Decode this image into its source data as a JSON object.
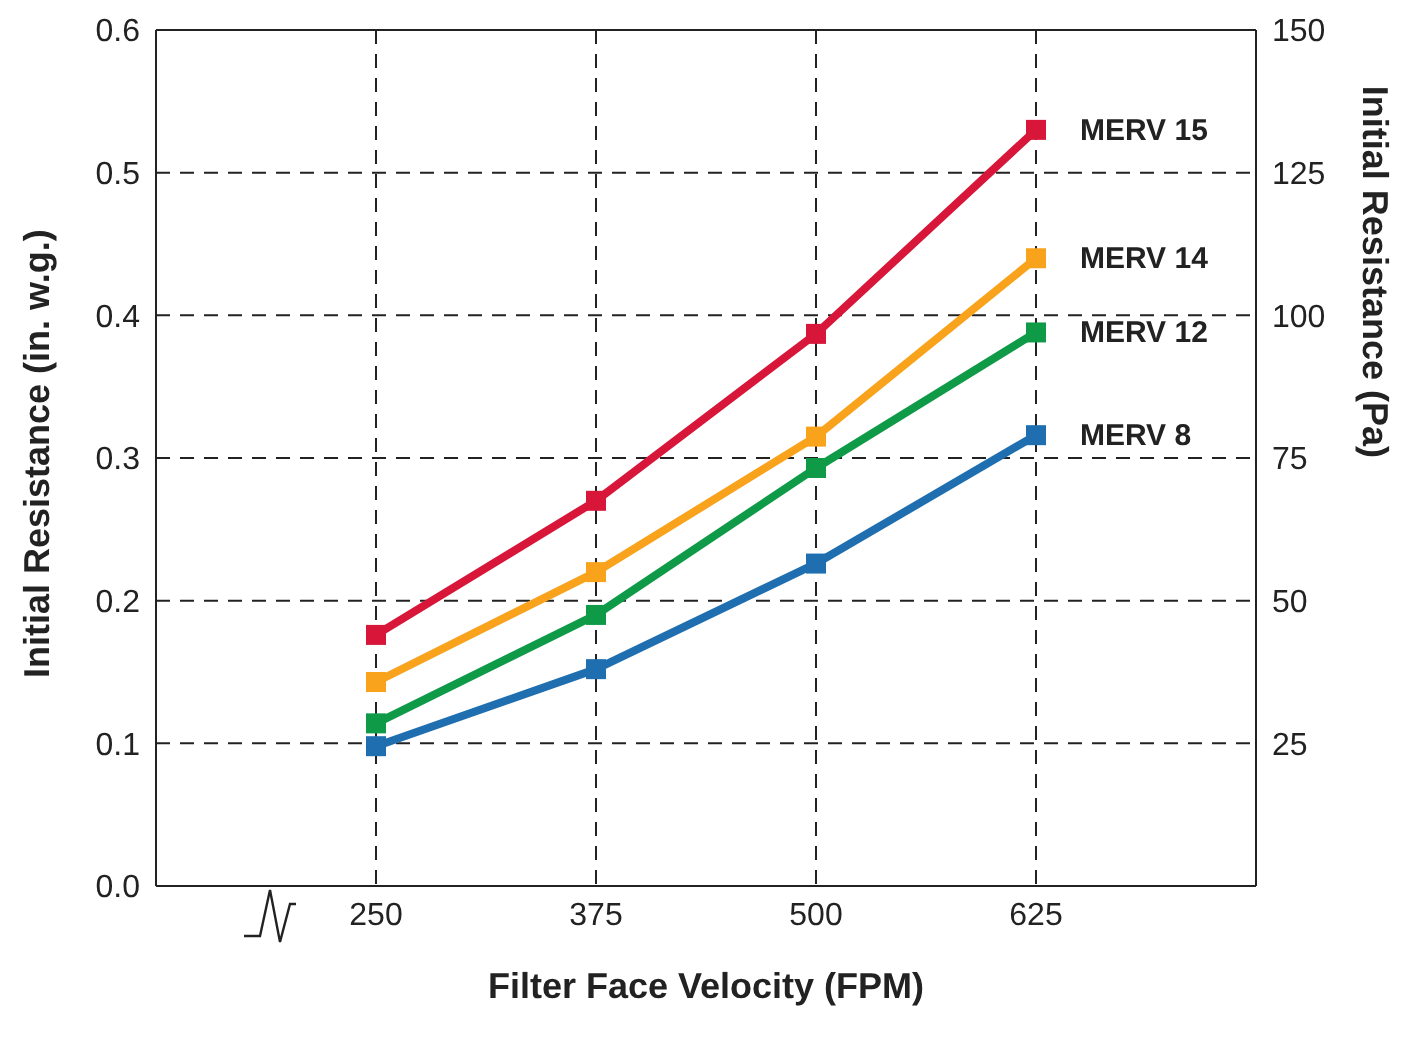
{
  "chart_data": {
    "type": "line",
    "xlabel": "Filter Face Velocity (FPM)",
    "ylabel": "Initial Resistance (in. w.g.)",
    "y2label": "Initial Resistance (Pa)",
    "x": [
      250,
      375,
      500,
      625
    ],
    "series": [
      {
        "name": "MERV 15",
        "color": "#d7163a",
        "values": [
          0.176,
          0.27,
          0.387,
          0.53
        ]
      },
      {
        "name": "MERV 14",
        "color": "#f9a21b",
        "values": [
          0.143,
          0.22,
          0.315,
          0.44
        ]
      },
      {
        "name": "MERV 12",
        "color": "#0f9a48",
        "values": [
          0.114,
          0.19,
          0.293,
          0.388
        ]
      },
      {
        "name": "MERV 8",
        "color": "#1f6fb0",
        "values": [
          0.098,
          0.152,
          0.226,
          0.316
        ]
      }
    ],
    "xlim": [
      125,
      750
    ],
    "xticks": [
      250,
      375,
      500,
      625
    ],
    "ylim": [
      0,
      0.6
    ],
    "yticks": [
      {
        "value": 0,
        "label": "0.0"
      },
      0.1,
      0.2,
      0.3,
      0.4,
      0.5,
      0.6
    ],
    "y2lim": [
      0,
      150
    ],
    "y2ticks": [
      25,
      50,
      75,
      100,
      125,
      150
    ],
    "grid": true,
    "marker": "square",
    "line_style": "solid"
  }
}
